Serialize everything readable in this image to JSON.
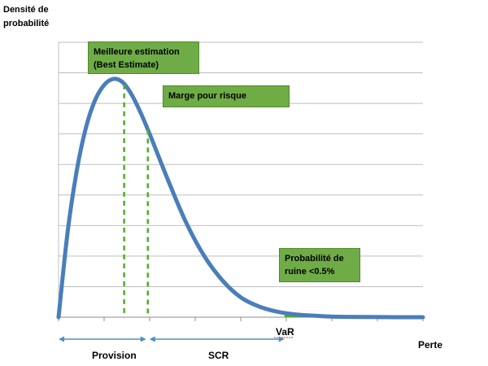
{
  "chart_data": {
    "type": "line",
    "title": "",
    "ylabel_line1": "Densité de",
    "ylabel_line2": "probabilité",
    "xlabel": "Perte",
    "grid": true,
    "series": [
      {
        "color": "#4a7ebb",
        "x": [
          0,
          0.5,
          1,
          1.5,
          2,
          2.5,
          3,
          3.5,
          4,
          4.5,
          5,
          6,
          7,
          8,
          9,
          10,
          11,
          12,
          13,
          14,
          15,
          16,
          17,
          18,
          19,
          20
        ],
        "y": [
          0,
          2.8,
          4.8,
          6.2,
          7.1,
          7.6,
          7.8,
          7.7,
          7.3,
          6.7,
          6.0,
          4.5,
          3.1,
          2.0,
          1.2,
          0.65,
          0.35,
          0.18,
          0.09,
          0.05,
          0.02,
          0.01,
          0.005,
          0.002,
          0.001,
          0.0
        ]
      }
    ],
    "xlim": [
      0,
      20
    ],
    "ylim": [
      0,
      9
    ],
    "markers": {
      "best_estimate_x": 3.6,
      "risk_margin_x": 4.9,
      "var_x": 12.4
    },
    "annotations": {
      "best_estimate_line1": "Meilleure estimation",
      "best_estimate_line2": "(Best Estimate)",
      "risk_margin": "Marge pour risque",
      "ruin_line1": "Probabilité de",
      "ruin_line2": "ruine <0.5%",
      "var": "VaR",
      "provision": "Provision",
      "scr": "SCR"
    },
    "colors": {
      "curve": "#4a7ebb",
      "dashed": "#4caf28",
      "box": "#6fac46",
      "arrow": "#4a90c8",
      "grid": "#bfbfbf"
    }
  }
}
